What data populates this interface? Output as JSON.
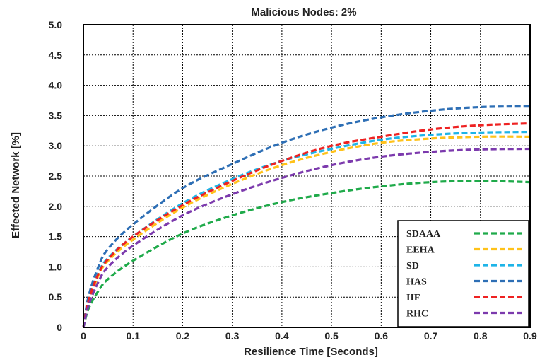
{
  "chart_data": {
    "type": "line",
    "title": "Malicious Nodes: 2%",
    "xlabel": "Resilience Time [Seconds]",
    "ylabel": "Effected Network [%]",
    "xlim": [
      0,
      0.9
    ],
    "ylim": [
      0,
      5.0
    ],
    "x_ticks": [
      "0",
      "0.1",
      "0.2",
      "0.3",
      "0.4",
      "0.5",
      "0.6",
      "0.7",
      "0.8",
      "0.9"
    ],
    "y_ticks": [
      "0",
      "0.5",
      "1.0",
      "1.5",
      "2.0",
      "2.5",
      "3.0",
      "3.5",
      "4.0",
      "4.5",
      "5.0"
    ],
    "grid": true,
    "legend_position": "bottom-right",
    "x": [
      0,
      0.01,
      0.03,
      0.05,
      0.1,
      0.2,
      0.3,
      0.4,
      0.5,
      0.6,
      0.7,
      0.8,
      0.9
    ],
    "series": [
      {
        "name": "SDAAA",
        "color": "#1faa4a",
        "values": [
          0,
          0.3,
          0.6,
          0.8,
          1.1,
          1.55,
          1.85,
          2.07,
          2.22,
          2.33,
          2.4,
          2.42,
          2.4
        ]
      },
      {
        "name": "EEHA",
        "color": "#ffc21a",
        "values": [
          0,
          0.4,
          0.85,
          1.1,
          1.45,
          1.98,
          2.37,
          2.68,
          2.9,
          3.05,
          3.12,
          3.15,
          3.15
        ]
      },
      {
        "name": "SD",
        "color": "#1eb4e8",
        "values": [
          0,
          0.45,
          0.9,
          1.15,
          1.5,
          2.05,
          2.45,
          2.75,
          2.95,
          3.1,
          3.18,
          3.22,
          3.23
        ]
      },
      {
        "name": "HAS",
        "color": "#2e6fb5",
        "values": [
          0,
          0.5,
          1.0,
          1.3,
          1.7,
          2.3,
          2.7,
          3.05,
          3.3,
          3.47,
          3.58,
          3.64,
          3.65
        ]
      },
      {
        "name": "IIF",
        "color": "#ee2222",
        "values": [
          0,
          0.43,
          0.88,
          1.13,
          1.5,
          2.02,
          2.42,
          2.75,
          3.0,
          3.15,
          3.27,
          3.34,
          3.37
        ]
      },
      {
        "name": "RHC",
        "color": "#7c3aad",
        "values": [
          0,
          0.35,
          0.75,
          1.0,
          1.35,
          1.85,
          2.2,
          2.47,
          2.68,
          2.82,
          2.9,
          2.94,
          2.95
        ]
      }
    ]
  }
}
